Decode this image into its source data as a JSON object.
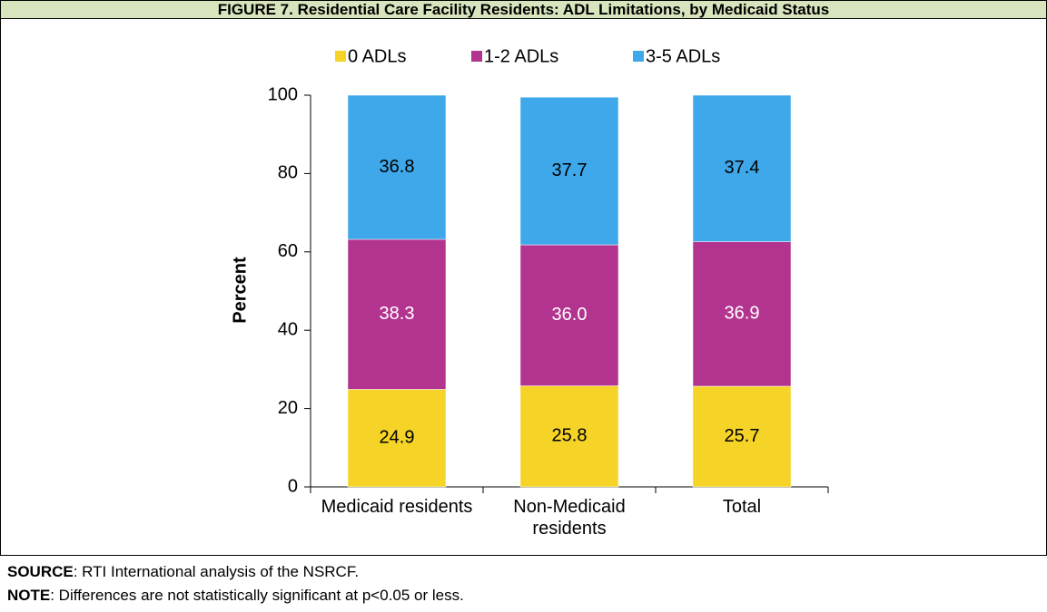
{
  "chart_data": {
    "type": "stacked_bar",
    "title": "FIGURE 7. Residential Care Facility Residents: ADL Limitations, by Medicaid Status",
    "categories": [
      "Medicaid residents",
      "Non-Medicaid residents",
      "Total"
    ],
    "series": [
      {
        "name": "0 ADLs",
        "color": "#f5d327",
        "values": [
          24.9,
          25.8,
          25.7
        ],
        "value_labels": [
          "24.9",
          "25.8",
          "25.7"
        ]
      },
      {
        "name": "1-2 ADLs",
        "color": "#b3348f",
        "values": [
          38.3,
          36.0,
          36.9
        ],
        "value_labels": [
          "38.3",
          "36.0",
          "36.9"
        ]
      },
      {
        "name": "3-5 ADLs",
        "color": "#3ea8ea",
        "values": [
          36.8,
          37.7,
          37.4
        ],
        "value_labels": [
          "36.8",
          "37.7",
          "37.4"
        ]
      }
    ],
    "y_label": "Percent",
    "ylim": [
      0,
      100
    ],
    "yticks": [
      0,
      20,
      40,
      60,
      80,
      100
    ],
    "legend": "top"
  },
  "source": {
    "label": "SOURCE",
    "text": ":  RTI International analysis of the NSRCF."
  },
  "note": {
    "label": "NOTE",
    "text": ":  Differences are not statistically significant at p<0.05 or less."
  }
}
